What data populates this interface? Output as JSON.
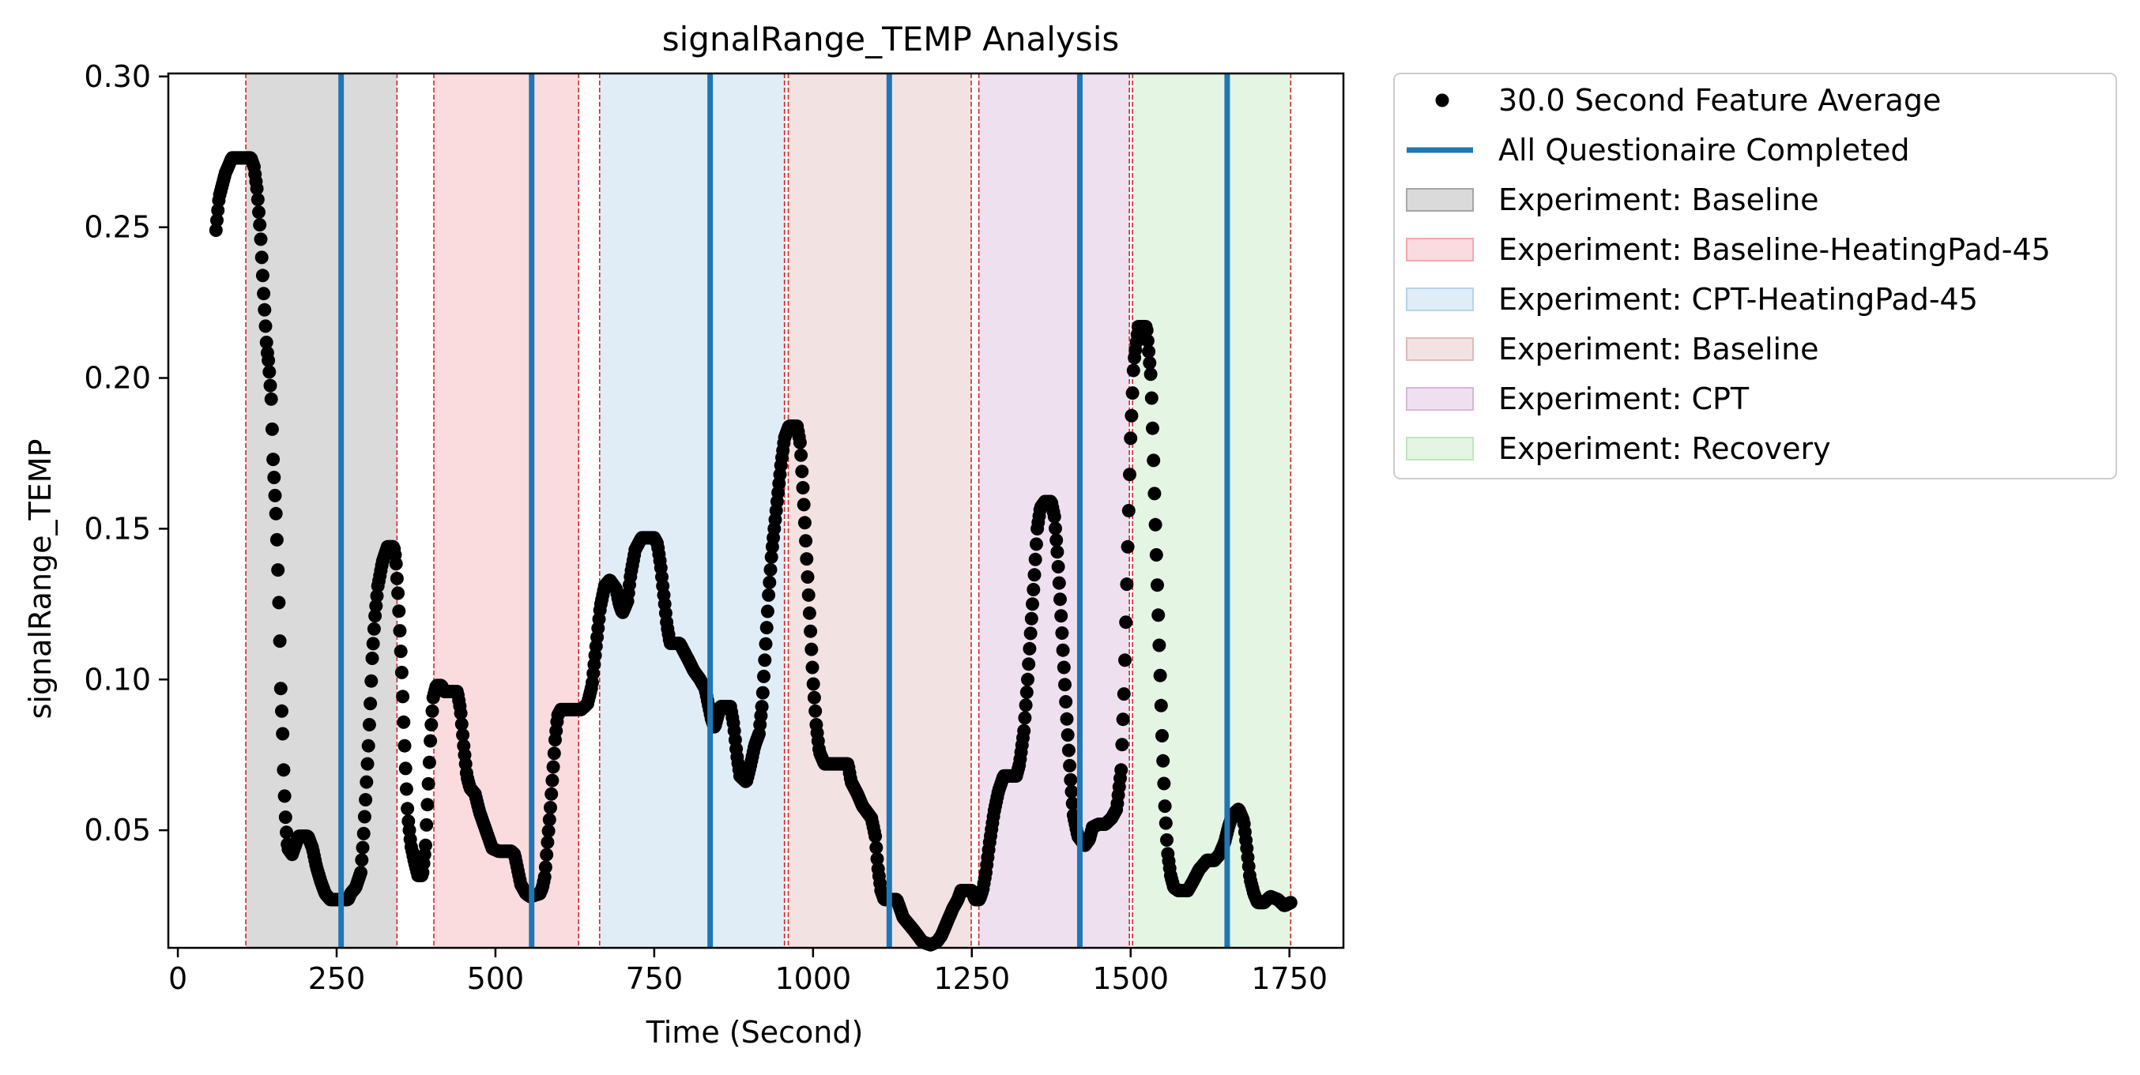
{
  "chart_data": {
    "type": "scatter",
    "title": "signalRange_TEMP Analysis",
    "xlabel": "Time (Second)",
    "ylabel": "signalRange_TEMP",
    "xlim": [
      -15,
      1835
    ],
    "ylim": [
      0.011,
      0.301
    ],
    "xticks": [
      0,
      250,
      500,
      750,
      1000,
      1250,
      1500,
      1750
    ],
    "xtick_labels": [
      "0",
      "250",
      "500",
      "750",
      "1000",
      "1250",
      "1500",
      "1750"
    ],
    "yticks": [
      0.05,
      0.1,
      0.15,
      0.2,
      0.25,
      0.3
    ],
    "ytick_labels": [
      "0.05",
      "0.10",
      "0.15",
      "0.20",
      "0.25",
      "0.30"
    ],
    "grid": false,
    "legend_placement": "outside-top-right",
    "series": [
      {
        "name": "30.0 Second Feature Average",
        "kind": "points",
        "color": "#000000",
        "keypoints": [
          [
            60,
            0.249
          ],
          [
            65,
            0.26
          ],
          [
            75,
            0.268
          ],
          [
            85,
            0.273
          ],
          [
            115,
            0.273
          ],
          [
            120,
            0.27
          ],
          [
            125,
            0.262
          ],
          [
            130,
            0.248
          ],
          [
            135,
            0.228
          ],
          [
            140,
            0.21
          ],
          [
            143,
            0.205
          ],
          [
            147,
            0.193
          ],
          [
            150,
            0.173
          ],
          [
            155,
            0.153
          ],
          [
            158,
            0.133
          ],
          [
            160,
            0.118
          ],
          [
            162,
            0.097
          ],
          [
            165,
            0.082
          ],
          [
            167,
            0.066
          ],
          [
            170,
            0.052
          ],
          [
            173,
            0.044
          ],
          [
            180,
            0.042
          ],
          [
            185,
            0.045
          ],
          [
            190,
            0.048
          ],
          [
            205,
            0.048
          ],
          [
            212,
            0.044
          ],
          [
            218,
            0.038
          ],
          [
            225,
            0.033
          ],
          [
            232,
            0.029
          ],
          [
            240,
            0.027
          ],
          [
            268,
            0.027
          ],
          [
            272,
            0.029
          ],
          [
            280,
            0.031
          ],
          [
            288,
            0.036
          ],
          [
            292,
            0.047
          ],
          [
            296,
            0.062
          ],
          [
            300,
            0.078
          ],
          [
            303,
            0.092
          ],
          [
            306,
            0.107
          ],
          [
            310,
            0.12
          ],
          [
            315,
            0.131
          ],
          [
            322,
            0.139
          ],
          [
            330,
            0.144
          ],
          [
            340,
            0.144
          ],
          [
            343,
            0.14
          ],
          [
            347,
            0.127
          ],
          [
            350,
            0.114
          ],
          [
            353,
            0.1
          ],
          [
            356,
            0.083
          ],
          [
            359,
            0.068
          ],
          [
            362,
            0.055
          ],
          [
            367,
            0.045
          ],
          [
            372,
            0.04
          ],
          [
            378,
            0.035
          ],
          [
            385,
            0.035
          ],
          [
            390,
            0.045
          ],
          [
            394,
            0.063
          ],
          [
            398,
            0.082
          ],
          [
            402,
            0.094
          ],
          [
            407,
            0.098
          ],
          [
            415,
            0.098
          ],
          [
            420,
            0.096
          ],
          [
            440,
            0.096
          ],
          [
            445,
            0.09
          ],
          [
            450,
            0.078
          ],
          [
            455,
            0.068
          ],
          [
            460,
            0.064
          ],
          [
            468,
            0.062
          ],
          [
            475,
            0.056
          ],
          [
            485,
            0.05
          ],
          [
            495,
            0.044
          ],
          [
            505,
            0.043
          ],
          [
            525,
            0.043
          ],
          [
            530,
            0.042
          ],
          [
            535,
            0.037
          ],
          [
            540,
            0.032
          ],
          [
            548,
            0.029
          ],
          [
            555,
            0.028
          ],
          [
            570,
            0.029
          ],
          [
            574,
            0.031
          ],
          [
            578,
            0.035
          ],
          [
            582,
            0.046
          ],
          [
            586,
            0.056
          ],
          [
            590,
            0.068
          ],
          [
            594,
            0.08
          ],
          [
            598,
            0.088
          ],
          [
            603,
            0.09
          ],
          [
            615,
            0.09
          ],
          [
            635,
            0.09
          ],
          [
            645,
            0.092
          ],
          [
            652,
            0.098
          ],
          [
            658,
            0.11
          ],
          [
            665,
            0.124
          ],
          [
            672,
            0.131
          ],
          [
            680,
            0.133
          ],
          [
            690,
            0.13
          ],
          [
            695,
            0.125
          ],
          [
            700,
            0.122
          ],
          [
            708,
            0.126
          ],
          [
            713,
            0.135
          ],
          [
            720,
            0.143
          ],
          [
            730,
            0.147
          ],
          [
            750,
            0.147
          ],
          [
            755,
            0.145
          ],
          [
            760,
            0.138
          ],
          [
            765,
            0.128
          ],
          [
            770,
            0.118
          ],
          [
            775,
            0.112
          ],
          [
            790,
            0.112
          ],
          [
            795,
            0.11
          ],
          [
            805,
            0.106
          ],
          [
            812,
            0.103
          ],
          [
            822,
            0.1
          ],
          [
            830,
            0.097
          ],
          [
            835,
            0.092
          ],
          [
            840,
            0.087
          ],
          [
            845,
            0.084
          ],
          [
            850,
            0.088
          ],
          [
            855,
            0.091
          ],
          [
            870,
            0.091
          ],
          [
            875,
            0.085
          ],
          [
            880,
            0.075
          ],
          [
            885,
            0.068
          ],
          [
            895,
            0.066
          ],
          [
            902,
            0.072
          ],
          [
            908,
            0.078
          ],
          [
            915,
            0.082
          ],
          [
            920,
            0.092
          ],
          [
            925,
            0.11
          ],
          [
            930,
            0.128
          ],
          [
            935,
            0.142
          ],
          [
            940,
            0.152
          ],
          [
            945,
            0.162
          ],
          [
            950,
            0.172
          ],
          [
            955,
            0.18
          ],
          [
            962,
            0.184
          ],
          [
            975,
            0.184
          ],
          [
            980,
            0.178
          ],
          [
            985,
            0.16
          ],
          [
            990,
            0.14
          ],
          [
            995,
            0.12
          ],
          [
            1000,
            0.1
          ],
          [
            1005,
            0.085
          ],
          [
            1010,
            0.076
          ],
          [
            1018,
            0.072
          ],
          [
            1055,
            0.072
          ],
          [
            1060,
            0.066
          ],
          [
            1070,
            0.062
          ],
          [
            1078,
            0.058
          ],
          [
            1085,
            0.056
          ],
          [
            1092,
            0.054
          ],
          [
            1098,
            0.048
          ],
          [
            1102,
            0.038
          ],
          [
            1107,
            0.03
          ],
          [
            1112,
            0.027
          ],
          [
            1132,
            0.027
          ],
          [
            1137,
            0.024
          ],
          [
            1142,
            0.021
          ],
          [
            1150,
            0.019
          ],
          [
            1158,
            0.017
          ],
          [
            1165,
            0.015
          ],
          [
            1172,
            0.013
          ],
          [
            1185,
            0.012
          ],
          [
            1195,
            0.013
          ],
          [
            1202,
            0.015
          ],
          [
            1210,
            0.019
          ],
          [
            1220,
            0.024
          ],
          [
            1228,
            0.027
          ],
          [
            1233,
            0.03
          ],
          [
            1250,
            0.03
          ],
          [
            1255,
            0.027
          ],
          [
            1262,
            0.027
          ],
          [
            1267,
            0.03
          ],
          [
            1272,
            0.036
          ],
          [
            1278,
            0.046
          ],
          [
            1285,
            0.056
          ],
          [
            1292,
            0.063
          ],
          [
            1300,
            0.068
          ],
          [
            1320,
            0.068
          ],
          [
            1325,
            0.072
          ],
          [
            1332,
            0.083
          ],
          [
            1338,
            0.1
          ],
          [
            1343,
            0.117
          ],
          [
            1348,
            0.133
          ],
          [
            1353,
            0.15
          ],
          [
            1358,
            0.157
          ],
          [
            1365,
            0.159
          ],
          [
            1375,
            0.159
          ],
          [
            1380,
            0.154
          ],
          [
            1385,
            0.141
          ],
          [
            1390,
            0.123
          ],
          [
            1395,
            0.104
          ],
          [
            1400,
            0.085
          ],
          [
            1405,
            0.068
          ],
          [
            1410,
            0.055
          ],
          [
            1417,
            0.048
          ],
          [
            1428,
            0.045
          ],
          [
            1435,
            0.047
          ],
          [
            1440,
            0.051
          ],
          [
            1450,
            0.052
          ],
          [
            1460,
            0.052
          ],
          [
            1470,
            0.054
          ],
          [
            1478,
            0.057
          ],
          [
            1485,
            0.07
          ],
          [
            1490,
            0.098
          ],
          [
            1495,
            0.14
          ],
          [
            1500,
            0.18
          ],
          [
            1505,
            0.205
          ],
          [
            1512,
            0.217
          ],
          [
            1525,
            0.217
          ],
          [
            1528,
            0.21
          ],
          [
            1532,
            0.2
          ],
          [
            1535,
            0.18
          ],
          [
            1538,
            0.158
          ],
          [
            1541,
            0.138
          ],
          [
            1544,
            0.118
          ],
          [
            1547,
            0.098
          ],
          [
            1550,
            0.078
          ],
          [
            1554,
            0.058
          ],
          [
            1558,
            0.043
          ],
          [
            1563,
            0.035
          ],
          [
            1568,
            0.031
          ],
          [
            1575,
            0.03
          ],
          [
            1590,
            0.03
          ],
          [
            1598,
            0.033
          ],
          [
            1608,
            0.037
          ],
          [
            1620,
            0.04
          ],
          [
            1632,
            0.04
          ],
          [
            1640,
            0.042
          ],
          [
            1648,
            0.046
          ],
          [
            1654,
            0.051
          ],
          [
            1660,
            0.055
          ],
          [
            1670,
            0.057
          ],
          [
            1678,
            0.053
          ],
          [
            1683,
            0.044
          ],
          [
            1688,
            0.034
          ],
          [
            1694,
            0.029
          ],
          [
            1700,
            0.026
          ],
          [
            1710,
            0.026
          ],
          [
            1720,
            0.028
          ],
          [
            1732,
            0.027
          ],
          [
            1742,
            0.025
          ],
          [
            1752,
            0.026
          ]
        ]
      },
      {
        "name": "All Questionaire Completed",
        "kind": "vlines",
        "color": "#1f77b4",
        "x": [
          257,
          557,
          838,
          1120,
          1420,
          1652
        ]
      }
    ],
    "regions": [
      {
        "name": "Experiment: Baseline",
        "x0": 107,
        "x1": 345,
        "color": "#a6a6a6"
      },
      {
        "name": "Experiment: Baseline-HeatingPad-45",
        "x0": 403,
        "x1": 631,
        "color": "#f2aab0"
      },
      {
        "name": "Experiment: CPT-HeatingPad-45",
        "x0": 664,
        "x1": 957,
        "color": "#b6d3ea"
      },
      {
        "name": "Experiment: Baseline",
        "x0": 961,
        "x1": 1250,
        "color": "#e3b9b9"
      },
      {
        "name": "Experiment: CPT",
        "x0": 1261,
        "x1": 1499,
        "color": "#d9b6db"
      },
      {
        "name": "Experiment: Recovery",
        "x0": 1504,
        "x1": 1752,
        "color": "#bfe6bd"
      }
    ],
    "region_boundaries": [
      107,
      345,
      403,
      631,
      664,
      955,
      961,
      1249,
      1261,
      1498,
      1503,
      1752
    ],
    "boundary_color": "#d62728",
    "legend_entries": [
      "30.0 Second Feature Average",
      "All Questionaire Completed",
      "Experiment: Baseline",
      "Experiment: Baseline-HeatingPad-45",
      "Experiment: CPT-HeatingPad-45",
      "Experiment: Baseline",
      "Experiment: CPT",
      "Experiment: Recovery"
    ]
  }
}
